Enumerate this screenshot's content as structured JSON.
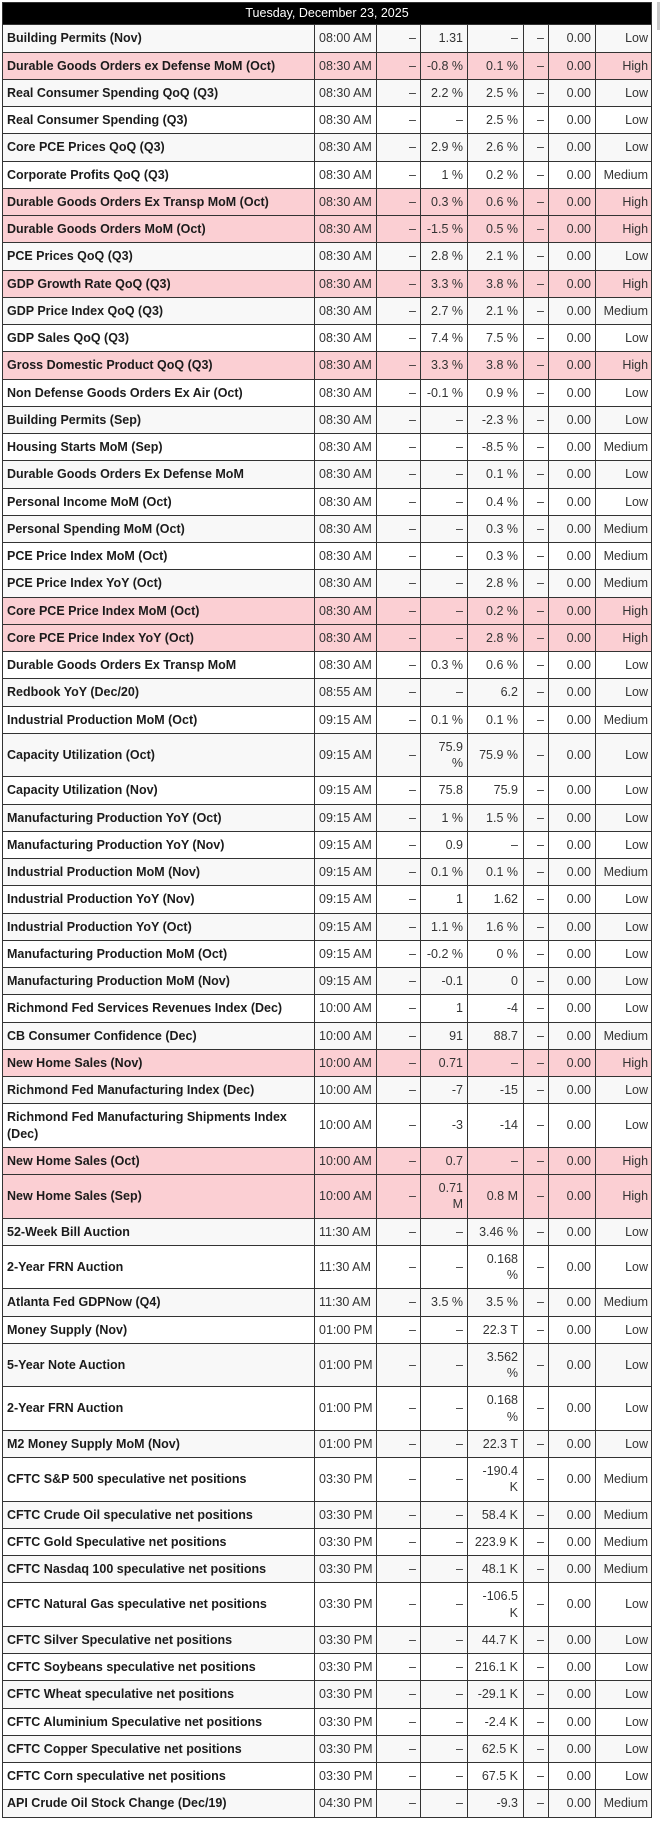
{
  "date_header": "Tuesday, December 23, 2025",
  "colors": {
    "header_bg": "#000000",
    "header_text": "#ffffff",
    "high_row_bg": "#fbcfd3",
    "stripe_row_bg": "#f8f8f8",
    "border": "#333333",
    "text": "#333333",
    "text_strong": "#1b1b1b"
  },
  "calendar": {
    "rows": [
      {
        "name": "Building Permits (Nov)",
        "time": "08:00 AM",
        "values": [
          "–",
          "1.31",
          "–",
          "–",
          "0.00"
        ],
        "importance": "Low"
      },
      {
        "name": "Durable Goods Orders ex Defense MoM (Oct)",
        "time": "08:30 AM",
        "values": [
          "–",
          "-0.8 %",
          "0.1 %",
          "–",
          "0.00"
        ],
        "importance": "High"
      },
      {
        "name": "Real Consumer Spending QoQ (Q3)",
        "time": "08:30 AM",
        "values": [
          "–",
          "2.2 %",
          "2.5 %",
          "–",
          "0.00"
        ],
        "importance": "Low"
      },
      {
        "name": "Real Consumer Spending (Q3)",
        "time": "08:30 AM",
        "values": [
          "–",
          "–",
          "2.5 %",
          "–",
          "0.00"
        ],
        "importance": "Low"
      },
      {
        "name": "Core PCE Prices QoQ (Q3)",
        "time": "08:30 AM",
        "values": [
          "–",
          "2.9 %",
          "2.6 %",
          "–",
          "0.00"
        ],
        "importance": "Low"
      },
      {
        "name": "Corporate Profits QoQ (Q3)",
        "time": "08:30 AM",
        "values": [
          "–",
          "1 %",
          "0.2 %",
          "–",
          "0.00"
        ],
        "importance": "Medium"
      },
      {
        "name": "Durable Goods Orders Ex Transp MoM (Oct)",
        "time": "08:30 AM",
        "values": [
          "–",
          "0.3 %",
          "0.6 %",
          "–",
          "0.00"
        ],
        "importance": "High"
      },
      {
        "name": "Durable Goods Orders MoM (Oct)",
        "time": "08:30 AM",
        "values": [
          "–",
          "-1.5 %",
          "0.5 %",
          "–",
          "0.00"
        ],
        "importance": "High"
      },
      {
        "name": "PCE Prices QoQ (Q3)",
        "time": "08:30 AM",
        "values": [
          "–",
          "2.8 %",
          "2.1 %",
          "–",
          "0.00"
        ],
        "importance": "Low"
      },
      {
        "name": "GDP Growth Rate QoQ (Q3)",
        "time": "08:30 AM",
        "values": [
          "–",
          "3.3 %",
          "3.8 %",
          "–",
          "0.00"
        ],
        "importance": "High"
      },
      {
        "name": "GDP Price Index QoQ (Q3)",
        "time": "08:30 AM",
        "values": [
          "–",
          "2.7 %",
          "2.1 %",
          "–",
          "0.00"
        ],
        "importance": "Medium"
      },
      {
        "name": "GDP Sales QoQ (Q3)",
        "time": "08:30 AM",
        "values": [
          "–",
          "7.4 %",
          "7.5 %",
          "–",
          "0.00"
        ],
        "importance": "Low"
      },
      {
        "name": "Gross Domestic Product QoQ (Q3)",
        "time": "08:30 AM",
        "values": [
          "–",
          "3.3 %",
          "3.8 %",
          "–",
          "0.00"
        ],
        "importance": "High"
      },
      {
        "name": "Non Defense Goods Orders Ex Air (Oct)",
        "time": "08:30 AM",
        "values": [
          "–",
          "-0.1 %",
          "0.9 %",
          "–",
          "0.00"
        ],
        "importance": "Low"
      },
      {
        "name": "Building Permits (Sep)",
        "time": "08:30 AM",
        "values": [
          "–",
          "–",
          "-2.3 %",
          "–",
          "0.00"
        ],
        "importance": "Low"
      },
      {
        "name": "Housing Starts MoM (Sep)",
        "time": "08:30 AM",
        "values": [
          "–",
          "–",
          "-8.5 %",
          "–",
          "0.00"
        ],
        "importance": "Medium"
      },
      {
        "name": "Durable Goods Orders Ex Defense MoM",
        "time": "08:30 AM",
        "values": [
          "–",
          "–",
          "0.1 %",
          "–",
          "0.00"
        ],
        "importance": "Low"
      },
      {
        "name": "Personal Income MoM (Oct)",
        "time": "08:30 AM",
        "values": [
          "–",
          "–",
          "0.4 %",
          "–",
          "0.00"
        ],
        "importance": "Low"
      },
      {
        "name": "Personal Spending MoM (Oct)",
        "time": "08:30 AM",
        "values": [
          "–",
          "–",
          "0.3 %",
          "–",
          "0.00"
        ],
        "importance": "Medium"
      },
      {
        "name": "PCE Price Index MoM (Oct)",
        "time": "08:30 AM",
        "values": [
          "–",
          "–",
          "0.3 %",
          "–",
          "0.00"
        ],
        "importance": "Medium"
      },
      {
        "name": "PCE Price Index YoY (Oct)",
        "time": "08:30 AM",
        "values": [
          "–",
          "–",
          "2.8 %",
          "–",
          "0.00"
        ],
        "importance": "Medium"
      },
      {
        "name": "Core PCE Price Index MoM (Oct)",
        "time": "08:30 AM",
        "values": [
          "–",
          "–",
          "0.2 %",
          "–",
          "0.00"
        ],
        "importance": "High"
      },
      {
        "name": "Core PCE Price Index YoY (Oct)",
        "time": "08:30 AM",
        "values": [
          "–",
          "–",
          "2.8 %",
          "–",
          "0.00"
        ],
        "importance": "High"
      },
      {
        "name": "Durable Goods Orders Ex Transp MoM",
        "time": "08:30 AM",
        "values": [
          "–",
          "0.3 %",
          "0.6 %",
          "–",
          "0.00"
        ],
        "importance": "Low"
      },
      {
        "name": "Redbook YoY (Dec/20)",
        "time": "08:55 AM",
        "values": [
          "–",
          "–",
          "6.2",
          "–",
          "0.00"
        ],
        "importance": "Low"
      },
      {
        "name": "Industrial Production MoM (Oct)",
        "time": "09:15 AM",
        "values": [
          "–",
          "0.1 %",
          "0.1 %",
          "–",
          "0.00"
        ],
        "importance": "Medium"
      },
      {
        "name": "Capacity Utilization (Oct)",
        "time": "09:15 AM",
        "values": [
          "–",
          "75.9 %",
          "75.9 %",
          "–",
          "0.00"
        ],
        "importance": "Low"
      },
      {
        "name": "Capacity Utilization (Nov)",
        "time": "09:15 AM",
        "values": [
          "–",
          "75.8",
          "75.9",
          "–",
          "0.00"
        ],
        "importance": "Low"
      },
      {
        "name": "Manufacturing Production YoY (Oct)",
        "time": "09:15 AM",
        "values": [
          "–",
          "1 %",
          "1.5 %",
          "–",
          "0.00"
        ],
        "importance": "Low"
      },
      {
        "name": "Manufacturing Production YoY (Nov)",
        "time": "09:15 AM",
        "values": [
          "–",
          "0.9",
          "–",
          "–",
          "0.00"
        ],
        "importance": "Low"
      },
      {
        "name": "Industrial Production MoM (Nov)",
        "time": "09:15 AM",
        "values": [
          "–",
          "0.1 %",
          "0.1 %",
          "–",
          "0.00"
        ],
        "importance": "Medium"
      },
      {
        "name": "Industrial Production YoY (Nov)",
        "time": "09:15 AM",
        "values": [
          "–",
          "1",
          "1.62",
          "–",
          "0.00"
        ],
        "importance": "Low"
      },
      {
        "name": "Industrial Production YoY (Oct)",
        "time": "09:15 AM",
        "values": [
          "–",
          "1.1 %",
          "1.6 %",
          "–",
          "0.00"
        ],
        "importance": "Low"
      },
      {
        "name": "Manufacturing Production MoM (Oct)",
        "time": "09:15 AM",
        "values": [
          "–",
          "-0.2 %",
          "0 %",
          "–",
          "0.00"
        ],
        "importance": "Low"
      },
      {
        "name": "Manufacturing Production MoM (Nov)",
        "time": "09:15 AM",
        "values": [
          "–",
          "-0.1",
          "0",
          "–",
          "0.00"
        ],
        "importance": "Low"
      },
      {
        "name": "Richmond Fed Services Revenues Index (Dec)",
        "time": "10:00 AM",
        "values": [
          "–",
          "1",
          "-4",
          "–",
          "0.00"
        ],
        "importance": "Low"
      },
      {
        "name": "CB Consumer Confidence (Dec)",
        "time": "10:00 AM",
        "values": [
          "–",
          "91",
          "88.7",
          "–",
          "0.00"
        ],
        "importance": "Medium"
      },
      {
        "name": "New Home Sales (Nov)",
        "time": "10:00 AM",
        "values": [
          "–",
          "0.71",
          "–",
          "–",
          "0.00"
        ],
        "importance": "High"
      },
      {
        "name": "Richmond Fed Manufacturing Index (Dec)",
        "time": "10:00 AM",
        "values": [
          "–",
          "-7",
          "-15",
          "–",
          "0.00"
        ],
        "importance": "Low"
      },
      {
        "name": "Richmond Fed Manufacturing Shipments Index (Dec)",
        "time": "10:00 AM",
        "values": [
          "–",
          "-3",
          "-14",
          "–",
          "0.00"
        ],
        "importance": "Low"
      },
      {
        "name": "New Home Sales (Oct)",
        "time": "10:00 AM",
        "values": [
          "–",
          "0.7",
          "–",
          "–",
          "0.00"
        ],
        "importance": "High"
      },
      {
        "name": "New Home Sales (Sep)",
        "time": "10:00 AM",
        "values": [
          "–",
          "0.71 M",
          "0.8 M",
          "–",
          "0.00"
        ],
        "importance": "High"
      },
      {
        "name": "52-Week Bill Auction",
        "time": "11:30 AM",
        "values": [
          "–",
          "–",
          "3.46 %",
          "–",
          "0.00"
        ],
        "importance": "Low"
      },
      {
        "name": "2-Year FRN Auction",
        "time": "11:30 AM",
        "values": [
          "–",
          "–",
          "0.168 %",
          "–",
          "0.00"
        ],
        "importance": "Low"
      },
      {
        "name": "Atlanta Fed GDPNow (Q4)",
        "time": "11:30 AM",
        "values": [
          "–",
          "3.5 %",
          "3.5 %",
          "–",
          "0.00"
        ],
        "importance": "Medium"
      },
      {
        "name": "Money Supply (Nov)",
        "time": "01:00 PM",
        "values": [
          "–",
          "–",
          "22.3 T",
          "–",
          "0.00"
        ],
        "importance": "Low"
      },
      {
        "name": "5-Year Note Auction",
        "time": "01:00 PM",
        "values": [
          "–",
          "–",
          "3.562 %",
          "–",
          "0.00"
        ],
        "importance": "Low"
      },
      {
        "name": "2-Year FRN Auction",
        "time": "01:00 PM",
        "values": [
          "–",
          "–",
          "0.168 %",
          "–",
          "0.00"
        ],
        "importance": "Low"
      },
      {
        "name": "M2 Money Supply MoM (Nov)",
        "time": "01:00 PM",
        "values": [
          "–",
          "–",
          "22.3 T",
          "–",
          "0.00"
        ],
        "importance": "Low"
      },
      {
        "name": "CFTC S&P 500 speculative net positions",
        "time": "03:30 PM",
        "values": [
          "–",
          "–",
          "-190.4 K",
          "–",
          "0.00"
        ],
        "importance": "Medium"
      },
      {
        "name": "CFTC Crude Oil speculative net positions",
        "time": "03:30 PM",
        "values": [
          "–",
          "–",
          "58.4 K",
          "–",
          "0.00"
        ],
        "importance": "Medium"
      },
      {
        "name": "CFTC Gold Speculative net positions",
        "time": "03:30 PM",
        "values": [
          "–",
          "–",
          "223.9 K",
          "–",
          "0.00"
        ],
        "importance": "Medium"
      },
      {
        "name": "CFTC Nasdaq 100 speculative net positions",
        "time": "03:30 PM",
        "values": [
          "–",
          "–",
          "48.1 K",
          "–",
          "0.00"
        ],
        "importance": "Medium"
      },
      {
        "name": "CFTC Natural Gas speculative net positions",
        "time": "03:30 PM",
        "values": [
          "–",
          "–",
          "-106.5 K",
          "–",
          "0.00"
        ],
        "importance": "Low"
      },
      {
        "name": "CFTC Silver Speculative net positions",
        "time": "03:30 PM",
        "values": [
          "–",
          "–",
          "44.7 K",
          "–",
          "0.00"
        ],
        "importance": "Low"
      },
      {
        "name": "CFTC Soybeans speculative net positions",
        "time": "03:30 PM",
        "values": [
          "–",
          "–",
          "216.1 K",
          "–",
          "0.00"
        ],
        "importance": "Low"
      },
      {
        "name": "CFTC Wheat speculative net positions",
        "time": "03:30 PM",
        "values": [
          "–",
          "–",
          "-29.1 K",
          "–",
          "0.00"
        ],
        "importance": "Low"
      },
      {
        "name": "CFTC Aluminium Speculative net positions",
        "time": "03:30 PM",
        "values": [
          "–",
          "–",
          "-2.4 K",
          "–",
          "0.00"
        ],
        "importance": "Low"
      },
      {
        "name": "CFTC Copper Speculative net positions",
        "time": "03:30 PM",
        "values": [
          "–",
          "–",
          "62.5 K",
          "–",
          "0.00"
        ],
        "importance": "Low"
      },
      {
        "name": "CFTC Corn speculative net positions",
        "time": "03:30 PM",
        "values": [
          "–",
          "–",
          "67.5 K",
          "–",
          "0.00"
        ],
        "importance": "Low"
      },
      {
        "name": "API Crude Oil Stock Change (Dec/19)",
        "time": "04:30 PM",
        "values": [
          "–",
          "–",
          "-9.3",
          "–",
          "0.00"
        ],
        "importance": "Medium"
      }
    ]
  }
}
